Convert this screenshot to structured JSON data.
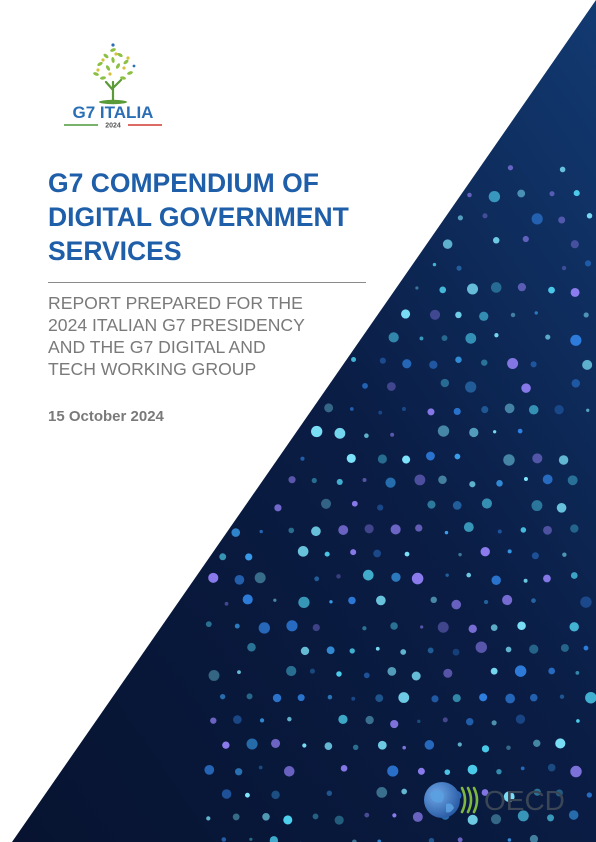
{
  "logo": {
    "name": "G7 ITALIA",
    "year": "2024",
    "icon": "olive-tree-icon"
  },
  "title_lines": [
    "G7 COMPENDIUM OF",
    "DIGITAL GOVERNMENT",
    "SERVICES"
  ],
  "subtitle_lines": [
    "REPORT PREPARED FOR THE",
    "2024 ITALIAN G7 PRESIDENCY",
    "AND THE G7 DIGITAL AND",
    "TECH WORKING GROUP"
  ],
  "date": "15 October 2024",
  "publisher": {
    "name": "OECD",
    "icon": "globe-icon"
  },
  "colors": {
    "title": "#1f5ea8",
    "subtitle": "#7a7a7a",
    "band_dark": "#0a1633",
    "dot_cyan": "#4fd3f2",
    "dot_blue": "#2f7fe0",
    "dot_purple": "#8f7ef2",
    "logo_green": "#7fb840",
    "logo_blue": "#2a6fb5",
    "oecd_blue": "#1f5ea8"
  }
}
